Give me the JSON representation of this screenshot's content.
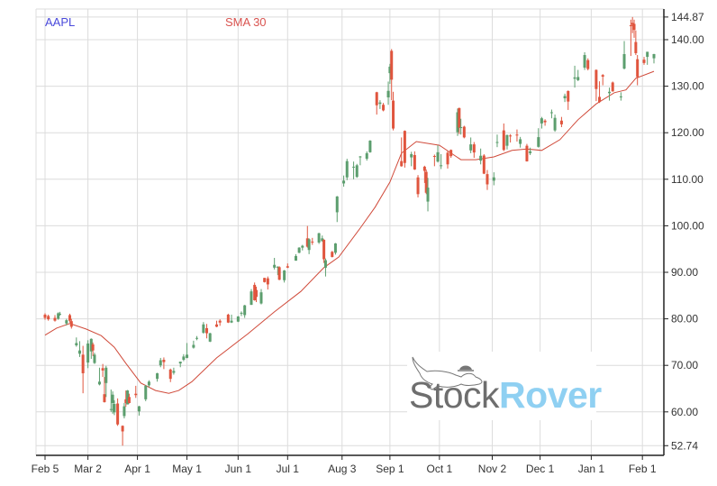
{
  "chart_data": {
    "type": "candlestick",
    "legend": [
      {
        "name": "AAPL",
        "color": "#4a4adb"
      },
      {
        "name": "SMA 30",
        "color": "#d9534f"
      }
    ],
    "colors": {
      "up": "#5c9e6e",
      "down": "#e0553e",
      "sma": "#d04a3a",
      "grid": "#dcdcdc"
    },
    "ylim": [
      52.74,
      144.87
    ],
    "yticks": [
      "144.87",
      "140.00",
      "130.00",
      "120.00",
      "110.00",
      "100.00",
      "90.00",
      "80.00",
      "70.00",
      "60.00",
      "52.74"
    ],
    "xticks": [
      {
        "label": "Feb 5",
        "date": "2020-02-05"
      },
      {
        "label": "Mar 2",
        "date": "2020-03-02"
      },
      {
        "label": "Apr 1",
        "date": "2020-04-01"
      },
      {
        "label": "May 1",
        "date": "2020-05-01"
      },
      {
        "label": "Jun 1",
        "date": "2020-06-01"
      },
      {
        "label": "Jul 1",
        "date": "2020-07-01"
      },
      {
        "label": "Aug 3",
        "date": "2020-08-03"
      },
      {
        "label": "Sep 1",
        "date": "2020-09-01"
      },
      {
        "label": "Oct 1",
        "date": "2020-10-01"
      },
      {
        "label": "Nov 2",
        "date": "2020-11-02"
      },
      {
        "label": "Dec 1",
        "date": "2020-12-01"
      },
      {
        "label": "Jan 1",
        "date": "2021-01-01"
      },
      {
        "label": "Feb 1",
        "date": "2021-02-01"
      }
    ],
    "grid": true,
    "candles_fields": [
      "date",
      "open",
      "high",
      "low",
      "close"
    ],
    "candles": [
      [
        "2020-02-05",
        80.9,
        81.2,
        79.8,
        80.2
      ],
      [
        "2020-02-07",
        80.6,
        80.9,
        79.6,
        79.9
      ],
      [
        "2020-02-11",
        80.2,
        80.8,
        79.4,
        79.6
      ],
      [
        "2020-02-13",
        80.0,
        81.4,
        79.8,
        81.2
      ],
      [
        "2020-02-14",
        81.0,
        81.5,
        80.7,
        81.1
      ],
      [
        "2020-02-18",
        79.0,
        80.0,
        78.6,
        79.7
      ],
      [
        "2020-02-20",
        80.8,
        81.1,
        79.2,
        79.6
      ],
      [
        "2020-02-21",
        79.5,
        80.0,
        77.9,
        78.3
      ],
      [
        "2020-02-24",
        74.3,
        76.0,
        74.0,
        74.8
      ],
      [
        "2020-02-26",
        72.5,
        75.2,
        71.8,
        73.2
      ],
      [
        "2020-02-28",
        72.3,
        74.2,
        64.0,
        68.3
      ],
      [
        "2020-03-02",
        70.6,
        75.4,
        69.4,
        74.7
      ],
      [
        "2020-03-04",
        73.0,
        75.8,
        71.4,
        75.7
      ],
      [
        "2020-03-05",
        74.5,
        74.9,
        72.0,
        73.2
      ],
      [
        "2020-03-06",
        70.5,
        72.7,
        70.3,
        72.3
      ],
      [
        "2020-03-09",
        65.9,
        69.5,
        65.7,
        66.5
      ],
      [
        "2020-03-11",
        69.4,
        70.3,
        67.5,
        68.9
      ],
      [
        "2020-03-12",
        63.8,
        67.5,
        62.0,
        62.1
      ],
      [
        "2020-03-13",
        66.2,
        69.9,
        63.2,
        69.5
      ],
      [
        "2020-03-16",
        60.5,
        64.8,
        60.0,
        60.6
      ],
      [
        "2020-03-17",
        61.9,
        64.4,
        59.6,
        63.7
      ],
      [
        "2020-03-18",
        59.9,
        62.5,
        59.3,
        61.7
      ],
      [
        "2020-03-20",
        61.8,
        62.9,
        57.0,
        57.3
      ],
      [
        "2020-03-23",
        57.0,
        57.1,
        52.74,
        55.8
      ],
      [
        "2020-03-24",
        59.1,
        61.9,
        58.6,
        61.2
      ],
      [
        "2020-03-25",
        62.7,
        64.6,
        61.1,
        61.9
      ],
      [
        "2020-03-26",
        61.6,
        64.7,
        61.6,
        64.6
      ],
      [
        "2020-03-27",
        63.2,
        63.9,
        61.8,
        61.9
      ],
      [
        "2020-03-31",
        63.9,
        65.6,
        63.0,
        63.6
      ],
      [
        "2020-04-02",
        60.1,
        61.3,
        59.2,
        61.2
      ],
      [
        "2020-04-06",
        62.7,
        65.8,
        62.3,
        65.6
      ],
      [
        "2020-04-08",
        65.7,
        66.8,
        65.3,
        66.5
      ],
      [
        "2020-04-13",
        67.1,
        68.4,
        66.5,
        68.3
      ],
      [
        "2020-04-15",
        70.0,
        71.6,
        69.6,
        71.1
      ],
      [
        "2020-04-17",
        71.2,
        71.7,
        69.2,
        70.7
      ],
      [
        "2020-04-21",
        69.1,
        69.3,
        66.4,
        67.1
      ],
      [
        "2020-04-23",
        68.4,
        69.5,
        68.0,
        68.8
      ],
      [
        "2020-04-27",
        70.4,
        70.8,
        69.6,
        70.8
      ],
      [
        "2020-04-29",
        71.2,
        72.4,
        70.9,
        71.9
      ],
      [
        "2020-05-01",
        71.6,
        74.8,
        71.5,
        72.3
      ],
      [
        "2020-05-05",
        73.8,
        75.3,
        73.6,
        74.4
      ],
      [
        "2020-05-07",
        75.8,
        76.3,
        75.4,
        75.9
      ],
      [
        "2020-05-11",
        77.0,
        79.3,
        76.8,
        78.8
      ],
      [
        "2020-05-13",
        78.0,
        78.9,
        75.8,
        76.9
      ],
      [
        "2020-05-15",
        75.1,
        77.0,
        75.0,
        76.9
      ],
      [
        "2020-05-19",
        78.8,
        79.6,
        78.2,
        78.3
      ],
      [
        "2020-05-21",
        79.6,
        79.9,
        78.5,
        79.2
      ],
      [
        "2020-05-26",
        80.9,
        81.1,
        79.1,
        79.2
      ],
      [
        "2020-05-28",
        79.2,
        80.9,
        79.1,
        79.6
      ],
      [
        "2020-06-01",
        79.4,
        80.6,
        79.3,
        80.5
      ],
      [
        "2020-06-03",
        81.2,
        81.6,
        80.6,
        81.3
      ],
      [
        "2020-06-05",
        80.8,
        83.0,
        80.2,
        82.9
      ],
      [
        "2020-06-09",
        83.0,
        86.4,
        83.0,
        85.9
      ],
      [
        "2020-06-11",
        87.3,
        87.8,
        83.9,
        84.0
      ],
      [
        "2020-06-12",
        86.2,
        86.9,
        83.6,
        84.7
      ],
      [
        "2020-06-15",
        83.3,
        86.4,
        83.1,
        85.7
      ],
      [
        "2020-06-17",
        88.8,
        88.8,
        87.8,
        87.9
      ],
      [
        "2020-06-19",
        88.7,
        89.1,
        86.3,
        87.4
      ],
      [
        "2020-06-23",
        91.0,
        93.1,
        90.6,
        91.6
      ],
      [
        "2020-06-25",
        91.0,
        91.3,
        89.4,
        91.2
      ],
      [
        "2020-06-26",
        91.1,
        91.3,
        88.3,
        88.4
      ],
      [
        "2020-06-29",
        88.3,
        90.5,
        87.8,
        90.4
      ],
      [
        "2020-07-01",
        91.3,
        91.9,
        90.9,
        91.0
      ],
      [
        "2020-07-06",
        92.5,
        93.9,
        92.5,
        93.5
      ],
      [
        "2020-07-08",
        94.2,
        95.4,
        94.1,
        95.3
      ],
      [
        "2020-07-10",
        95.3,
        95.9,
        94.7,
        95.7
      ],
      [
        "2020-07-13",
        97.3,
        99.96,
        95.3,
        95.5
      ],
      [
        "2020-07-14",
        94.8,
        97.3,
        93.9,
        97.1
      ],
      [
        "2020-07-16",
        96.6,
        97.4,
        95.9,
        96.5
      ],
      [
        "2020-07-20",
        96.4,
        98.5,
        96.1,
        98.4
      ],
      [
        "2020-07-22",
        96.7,
        97.9,
        96.6,
        97.3
      ],
      [
        "2020-07-23",
        96.99,
        97.1,
        92.0,
        92.8
      ],
      [
        "2020-07-24",
        90.99,
        92.97,
        89.1,
        92.6
      ],
      [
        "2020-07-28",
        94.4,
        94.6,
        93.2,
        93.3
      ],
      [
        "2020-07-30",
        94.2,
        96.3,
        93.8,
        96.2
      ],
      [
        "2020-07-31",
        102.9,
        106.4,
        100.8,
        106.3
      ],
      [
        "2020-08-04",
        109.1,
        110.8,
        108.4,
        109.7
      ],
      [
        "2020-08-06",
        110.4,
        114.4,
        109.8,
        113.9
      ],
      [
        "2020-08-10",
        112.6,
        113.8,
        110.0,
        112.7
      ],
      [
        "2020-08-12",
        110.5,
        113.3,
        110.3,
        113.0
      ],
      [
        "2020-08-14",
        114.8,
        115.0,
        113.0,
        114.9
      ],
      [
        "2020-08-18",
        114.4,
        116.0,
        114.0,
        115.6
      ],
      [
        "2020-08-20",
        115.8,
        118.4,
        115.7,
        118.3
      ],
      [
        "2020-08-24",
        128.7,
        128.8,
        123.9,
        125.9
      ],
      [
        "2020-08-26",
        126.2,
        126.99,
        125.1,
        126.5
      ],
      [
        "2020-08-28",
        126.0,
        126.4,
        124.6,
        124.8
      ],
      [
        "2020-08-31",
        127.6,
        131.0,
        126.0,
        129.0
      ],
      [
        "2020-09-01",
        132.8,
        134.8,
        130.5,
        134.2
      ],
      [
        "2020-09-02",
        137.6,
        137.98,
        127.0,
        131.4
      ],
      [
        "2020-09-03",
        126.9,
        128.8,
        120.5,
        120.9
      ],
      [
        "2020-09-08",
        113.9,
        118.99,
        112.7,
        112.8
      ],
      [
        "2020-09-10",
        120.4,
        120.5,
        112.5,
        113.5
      ],
      [
        "2020-09-14",
        114.7,
        115.9,
        112.8,
        115.4
      ],
      [
        "2020-09-16",
        115.2,
        116.0,
        112.0,
        112.1
      ],
      [
        "2020-09-18",
        110.4,
        110.9,
        106.1,
        106.8
      ],
      [
        "2020-09-22",
        112.7,
        112.9,
        109.2,
        111.8
      ],
      [
        "2020-09-23",
        111.6,
        112.1,
        106.8,
        107.1
      ],
      [
        "2020-09-24",
        105.2,
        110.3,
        103.1,
        108.2
      ],
      [
        "2020-09-28",
        115.0,
        115.3,
        112.8,
        114.96
      ],
      [
        "2020-09-30",
        113.8,
        117.3,
        113.6,
        115.8
      ],
      [
        "2020-10-02",
        112.9,
        115.4,
        112.2,
        113.0
      ],
      [
        "2020-10-06",
        115.7,
        116.1,
        112.3,
        113.2
      ],
      [
        "2020-10-08",
        116.3,
        116.4,
        114.6,
        114.97
      ],
      [
        "2020-10-12",
        120.1,
        125.2,
        119.3,
        124.4
      ],
      [
        "2020-10-13",
        125.3,
        125.4,
        119.7,
        121.1
      ],
      [
        "2020-10-14",
        121.0,
        123.0,
        119.6,
        121.2
      ],
      [
        "2020-10-16",
        121.3,
        121.5,
        118.8,
        119.0
      ],
      [
        "2020-10-20",
        116.2,
        118.98,
        115.6,
        117.5
      ],
      [
        "2020-10-22",
        117.5,
        118.0,
        114.6,
        115.75
      ],
      [
        "2020-10-26",
        114.0,
        116.6,
        113.2,
        115.05
      ],
      [
        "2020-10-28",
        115.1,
        115.4,
        111.1,
        111.2
      ],
      [
        "2020-10-30",
        111.1,
        111.99,
        107.7,
        108.9
      ],
      [
        "2020-11-03",
        109.7,
        111.5,
        108.7,
        110.4
      ],
      [
        "2020-11-05",
        117.95,
        119.6,
        116.9,
        118.0
      ],
      [
        "2020-11-09",
        120.5,
        121.99,
        116.05,
        116.3
      ],
      [
        "2020-11-11",
        117.2,
        119.6,
        116.4,
        119.5
      ],
      [
        "2020-11-13",
        119.4,
        119.7,
        117.9,
        119.3
      ],
      [
        "2020-11-17",
        119.6,
        120.7,
        118.1,
        119.4
      ],
      [
        "2020-11-19",
        117.6,
        119.1,
        116.8,
        118.6
      ],
      [
        "2020-11-23",
        117.2,
        117.6,
        113.8,
        113.85
      ],
      [
        "2020-11-25",
        115.6,
        116.8,
        115.2,
        116.0
      ],
      [
        "2020-11-30",
        116.97,
        120.97,
        116.8,
        119.05
      ],
      [
        "2020-12-02",
        122.0,
        123.4,
        120.9,
        123.1
      ],
      [
        "2020-12-04",
        122.6,
        122.9,
        121.5,
        122.25
      ],
      [
        "2020-12-08",
        124.4,
        124.98,
        123.1,
        124.4
      ],
      [
        "2020-12-10",
        120.5,
        123.9,
        120.2,
        123.2
      ],
      [
        "2020-12-14",
        122.6,
        123.4,
        121.2,
        121.8
      ],
      [
        "2020-12-16",
        127.4,
        128.4,
        126.6,
        127.9
      ],
      [
        "2020-12-18",
        128.96,
        129.1,
        124.9,
        126.7
      ],
      [
        "2020-12-22",
        131.6,
        134.4,
        129.7,
        131.9
      ],
      [
        "2020-12-24",
        131.3,
        133.5,
        131.1,
        131.97
      ],
      [
        "2020-12-28",
        133.99,
        137.3,
        133.5,
        136.7
      ],
      [
        "2020-12-30",
        135.6,
        135.99,
        133.4,
        133.7
      ],
      [
        "2021-01-04",
        133.5,
        133.6,
        126.8,
        129.4
      ],
      [
        "2021-01-06",
        127.7,
        131.05,
        126.4,
        126.6
      ],
      [
        "2021-01-08",
        132.4,
        132.6,
        130.2,
        132.05
      ],
      [
        "2021-01-12",
        128.5,
        129.7,
        126.9,
        128.8
      ],
      [
        "2021-01-14",
        130.8,
        131.0,
        128.8,
        128.9
      ],
      [
        "2021-01-19",
        127.8,
        128.7,
        126.9,
        127.8
      ],
      [
        "2021-01-21",
        133.8,
        139.7,
        133.6,
        136.9
      ],
      [
        "2021-01-25",
        143.1,
        144.3,
        136.5,
        142.9
      ],
      [
        "2021-01-26",
        143.6,
        144.87,
        141.4,
        143.2
      ],
      [
        "2021-01-27",
        143.4,
        144.3,
        140.4,
        142.1
      ],
      [
        "2021-01-28",
        139.5,
        141.99,
        136.7,
        137.1
      ],
      [
        "2021-01-29",
        135.8,
        136.7,
        130.2,
        131.96
      ],
      [
        "2021-02-02",
        135.7,
        136.3,
        134.6,
        134.99
      ],
      [
        "2021-02-04",
        136.3,
        137.4,
        134.6,
        137.4
      ],
      [
        "2021-02-08",
        136.0,
        136.96,
        134.9,
        136.9
      ]
    ],
    "sma_fields": [
      "date",
      "value"
    ],
    "sma": [
      [
        "2020-02-05",
        76.5
      ],
      [
        "2020-02-12",
        78.0
      ],
      [
        "2020-02-20",
        79.0
      ],
      [
        "2020-03-01",
        77.8
      ],
      [
        "2020-03-10",
        76.4
      ],
      [
        "2020-03-18",
        73.9
      ],
      [
        "2020-03-25",
        70.4
      ],
      [
        "2020-04-03",
        66.2
      ],
      [
        "2020-04-12",
        64.6
      ],
      [
        "2020-04-20",
        64.0
      ],
      [
        "2020-04-26",
        64.6
      ],
      [
        "2020-05-04",
        66.5
      ],
      [
        "2020-05-19",
        71.6
      ],
      [
        "2020-06-07",
        76.8
      ],
      [
        "2020-06-23",
        81.5
      ],
      [
        "2020-07-09",
        85.9
      ],
      [
        "2020-07-23",
        91.0
      ],
      [
        "2020-08-01",
        93.3
      ],
      [
        "2020-08-14",
        99.5
      ],
      [
        "2020-08-23",
        104.0
      ],
      [
        "2020-09-01",
        109.4
      ],
      [
        "2020-09-08",
        115.6
      ],
      [
        "2020-09-17",
        118.1
      ],
      [
        "2020-10-01",
        117.3
      ],
      [
        "2020-10-14",
        114.2
      ],
      [
        "2020-10-23",
        114.2
      ],
      [
        "2020-11-03",
        114.8
      ],
      [
        "2020-11-14",
        116.2
      ],
      [
        "2020-11-23",
        116.5
      ],
      [
        "2020-12-02",
        116.2
      ],
      [
        "2020-12-13",
        118.5
      ],
      [
        "2020-12-24",
        122.8
      ],
      [
        "2021-01-04",
        126.2
      ],
      [
        "2021-01-15",
        128.6
      ],
      [
        "2021-01-22",
        129.2
      ],
      [
        "2021-01-28",
        131.7
      ],
      [
        "2021-02-08",
        133.2
      ]
    ]
  },
  "watermark": {
    "word1": "Stock",
    "word2": "Rover"
  }
}
